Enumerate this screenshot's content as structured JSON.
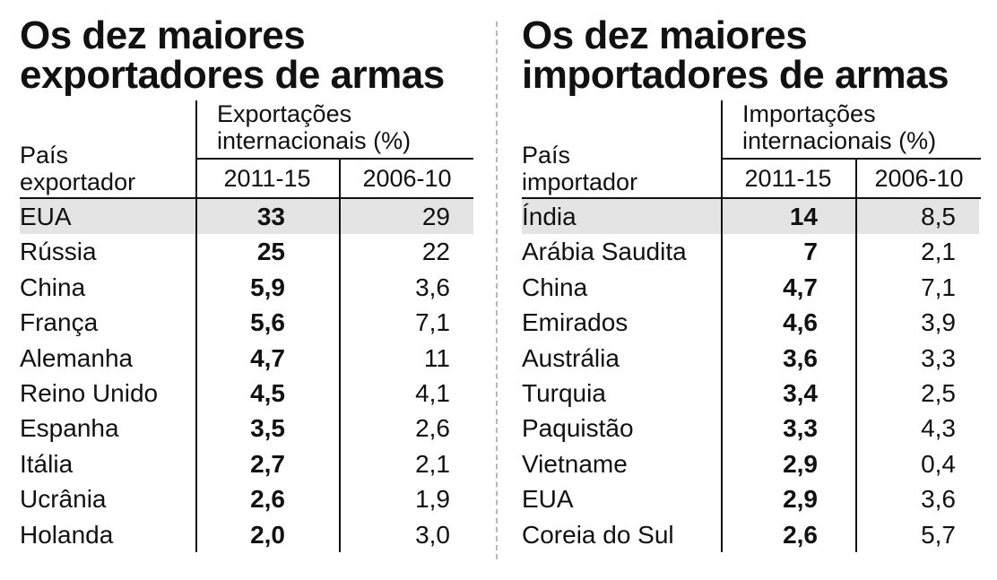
{
  "chart_data": [
    {
      "type": "table",
      "title": [
        "Os dez maiores",
        "exportadores de armas"
      ],
      "country_header": [
        "País",
        "exportador"
      ],
      "group_header": [
        "Exportações",
        "internacionais (%)"
      ],
      "columns": [
        "2011-15",
        "2006-10"
      ],
      "rows": [
        {
          "country": "EUA",
          "v1": "33",
          "v2": "29",
          "highlight": true
        },
        {
          "country": "Rússia",
          "v1": "25",
          "v2": "22",
          "highlight": false
        },
        {
          "country": "China",
          "v1": "5,9",
          "v2": "3,6",
          "highlight": false
        },
        {
          "country": "França",
          "v1": "5,6",
          "v2": "7,1",
          "highlight": false
        },
        {
          "country": "Alemanha",
          "v1": "4,7",
          "v2": "11",
          "highlight": false
        },
        {
          "country": "Reino Unido",
          "v1": "4,5",
          "v2": "4,1",
          "highlight": false
        },
        {
          "country": "Espanha",
          "v1": "3,5",
          "v2": "2,6",
          "highlight": false
        },
        {
          "country": "Itália",
          "v1": "2,7",
          "v2": "2,1",
          "highlight": false
        },
        {
          "country": "Ucrânia",
          "v1": "2,6",
          "v2": "1,9",
          "highlight": false
        },
        {
          "country": "Holanda",
          "v1": "2,0",
          "v2": "3,0",
          "highlight": false
        }
      ]
    },
    {
      "type": "table",
      "title": [
        "Os dez maiores",
        "importadores de armas"
      ],
      "country_header": [
        "País",
        "importador"
      ],
      "group_header": [
        "Importações",
        "internacionais (%)"
      ],
      "columns": [
        "2011-15",
        "2006-10"
      ],
      "rows": [
        {
          "country": "Índia",
          "v1": "14",
          "v2": "8,5",
          "highlight": true
        },
        {
          "country": "Arábia Saudita",
          "v1": "7",
          "v2": "2,1",
          "highlight": false
        },
        {
          "country": "China",
          "v1": "4,7",
          "v2": "7,1",
          "highlight": false
        },
        {
          "country": "Emirados",
          "v1": "4,6",
          "v2": "3,9",
          "highlight": false
        },
        {
          "country": "Austrália",
          "v1": "3,6",
          "v2": "3,3",
          "highlight": false
        },
        {
          "country": "Turquia",
          "v1": "3,4",
          "v2": "2,5",
          "highlight": false
        },
        {
          "country": "Paquistão",
          "v1": "3,3",
          "v2": "4,3",
          "highlight": false
        },
        {
          "country": "Vietname",
          "v1": "2,9",
          "v2": "0,4",
          "highlight": false
        },
        {
          "country": "EUA",
          "v1": "2,9",
          "v2": "3,6",
          "highlight": false
        },
        {
          "country": "Coreia do Sul",
          "v1": "2,6",
          "v2": "5,7",
          "highlight": false
        }
      ]
    }
  ]
}
